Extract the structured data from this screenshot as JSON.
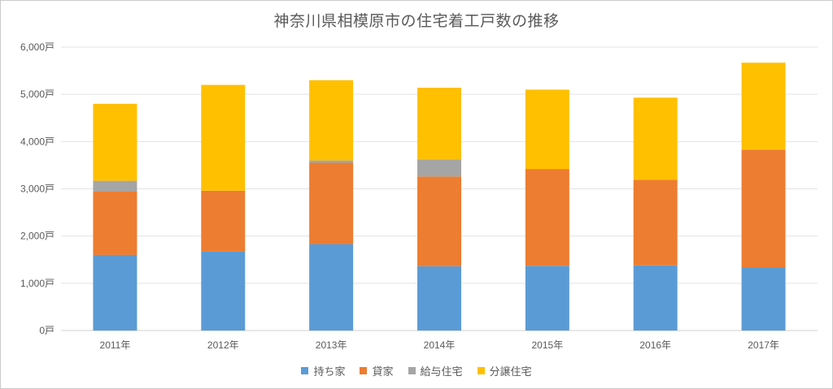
{
  "chart_data": {
    "type": "bar",
    "stacked": true,
    "title": "神奈川県相模原市の住宅着工戸数の推移",
    "categories": [
      "2011年",
      "2012年",
      "2013年",
      "2014年",
      "2015年",
      "2016年",
      "2017年"
    ],
    "series": [
      {
        "name": "持ち家",
        "color": "#5B9BD5",
        "values": [
          1600,
          1670,
          1830,
          1360,
          1370,
          1380,
          1340
        ]
      },
      {
        "name": "貸家",
        "color": "#ED7D31",
        "values": [
          1340,
          1290,
          1720,
          1900,
          2050,
          1810,
          2490
        ]
      },
      {
        "name": "給与住宅",
        "color": "#A5A5A5",
        "values": [
          230,
          0,
          50,
          360,
          0,
          0,
          0
        ]
      },
      {
        "name": "分譲住宅",
        "color": "#FFC000",
        "values": [
          1630,
          2240,
          1700,
          1520,
          1680,
          1740,
          1840
        ]
      }
    ],
    "ylim": [
      0,
      6000
    ],
    "yticks": [
      0,
      1000,
      2000,
      3000,
      4000,
      5000,
      6000
    ],
    "ytick_labels": [
      "0戸",
      "1,000戸",
      "2,000戸",
      "3,000戸",
      "4,000戸",
      "5,000戸",
      "6,000戸"
    ],
    "xlabel": "",
    "ylabel": "",
    "grid": true,
    "legend": "bottom"
  }
}
